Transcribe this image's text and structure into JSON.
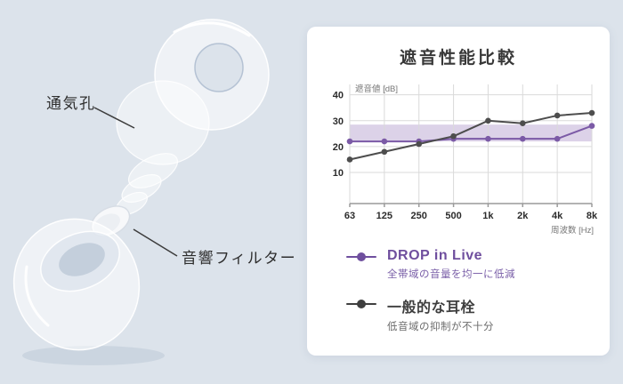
{
  "page": {
    "background": "#dce3eb"
  },
  "product": {
    "vent_label": "通気孔",
    "filter_label": "音響フィルター"
  },
  "card": {
    "title": "遮音性能比較"
  },
  "chart_data": {
    "type": "line",
    "title": "遮音性能比較",
    "ylabel": "遮音値 [dB]",
    "xlabel": "周波数 [Hz]",
    "categories": [
      "63",
      "125",
      "250",
      "500",
      "1k",
      "2k",
      "4k",
      "8k"
    ],
    "yticks": [
      10,
      20,
      30,
      40
    ],
    "ylim": [
      -2,
      44
    ],
    "grid": true,
    "legend_position": "bottom",
    "band": {
      "from": 22,
      "to": 28.5,
      "color": "#b9a5d2"
    },
    "series": [
      {
        "name": "DROP in Live",
        "color": "#7b5aa6",
        "values": [
          22,
          22,
          22,
          23,
          23,
          23,
          23,
          28
        ]
      },
      {
        "name": "一般的な耳栓",
        "color": "#4d4d4d",
        "values": [
          15,
          18,
          21,
          24,
          30,
          29,
          32,
          33
        ]
      }
    ]
  },
  "legend": {
    "items": [
      {
        "name": "DROP in Live",
        "desc": "全帯域の音量を均一に低減",
        "color": "#6f4f9e",
        "desc_color": "#7a5fa8"
      },
      {
        "name": "一般的な耳栓",
        "desc": "低音域の抑制が不十分",
        "color": "#3f3f3f",
        "desc_color": "#6b6b6b"
      }
    ]
  }
}
